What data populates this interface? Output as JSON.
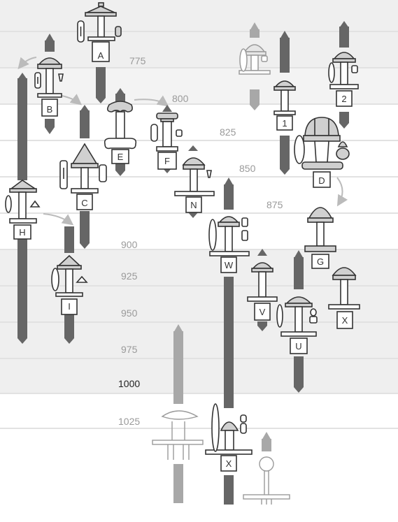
{
  "years": [
    "775",
    "800",
    "825",
    "850",
    "875",
    "900",
    "925",
    "950",
    "975",
    "1000",
    "1025"
  ],
  "highlighted_year": "1000",
  "sword_types": [
    "A",
    "B",
    "C",
    "D",
    "E",
    "F",
    "G",
    "H",
    "I",
    "N",
    "V",
    "W",
    "X",
    "U",
    "X",
    "1",
    "2"
  ],
  "colors": {
    "band_light": "#efefef",
    "band_mid": "#e8e8e8",
    "divider": "#ffffff",
    "bar_dark": "#666666",
    "bar_light": "#a8a8a8",
    "year_label": "#9a9a9a",
    "year_label_strong": "#222222",
    "sword_stroke": "#333333",
    "sword_fill": "#d0d0d0",
    "sword_light_stroke": "#9a9a9a",
    "arrow": "#bbbbbb"
  }
}
